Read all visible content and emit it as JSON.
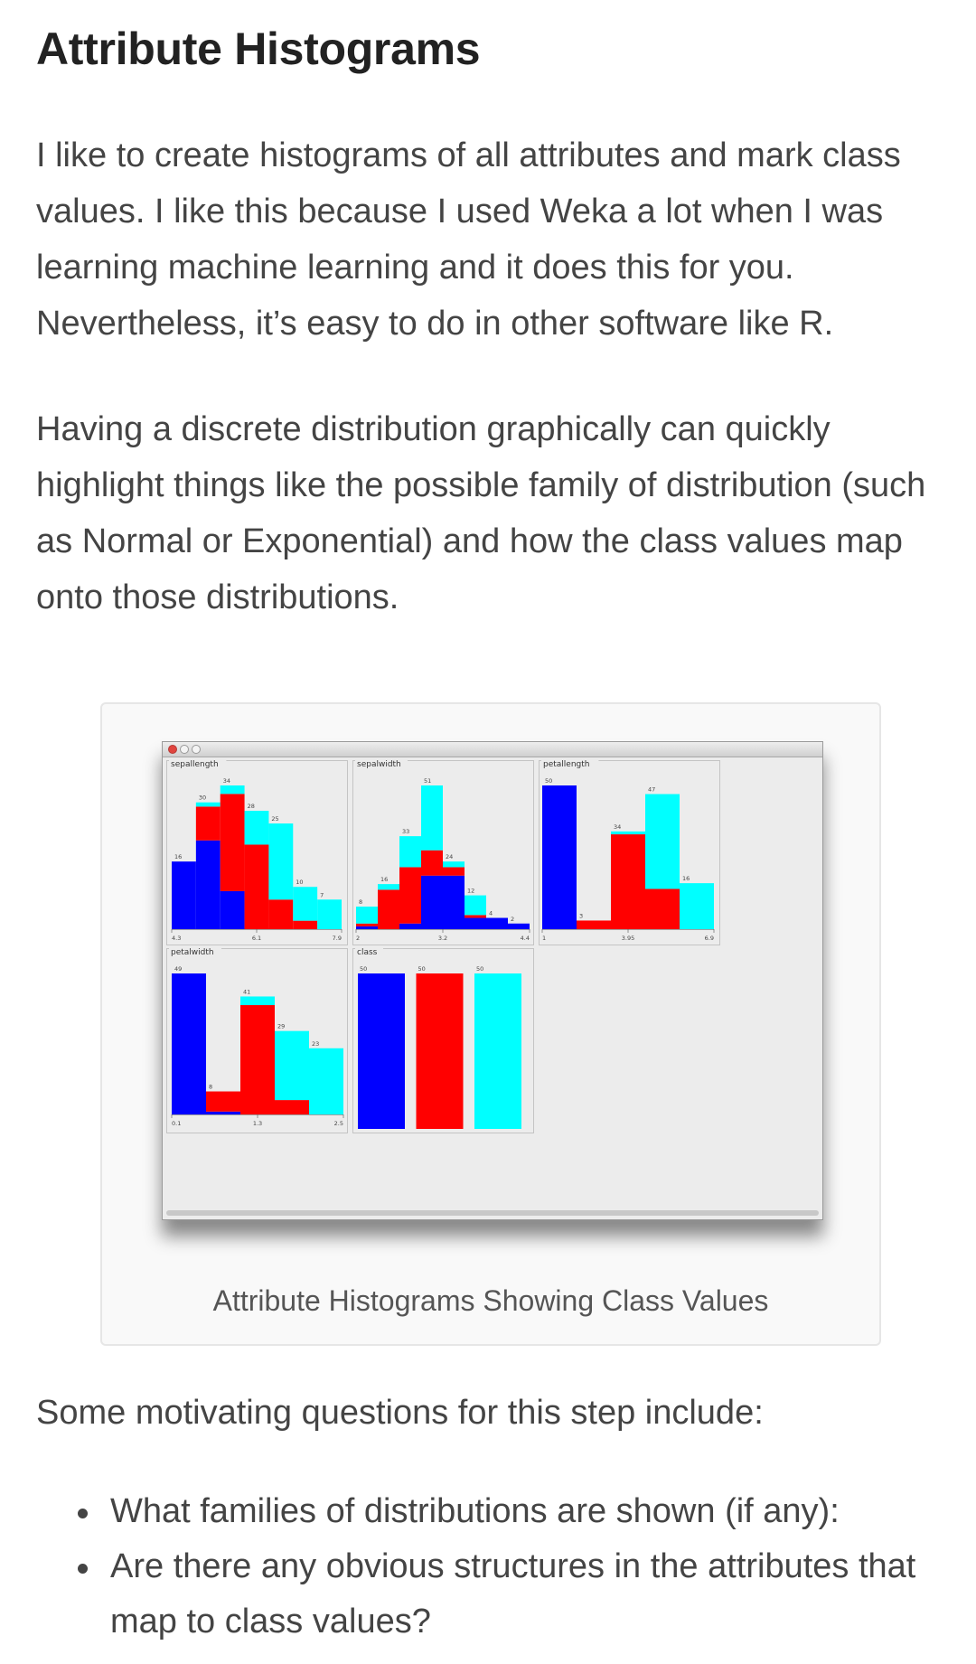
{
  "heading": "Attribute Histograms",
  "paragraphs": [
    "I like to create histograms of all attributes and mark class values. I like this because I used Weka a lot when I was learning machine learning and it does this for you. Nevertheless, it’s easy to do in other software like R.",
    "Having a discrete distribution graphically can quickly highlight things like the possible family of distribution (such as Normal or Exponential) and how the class values map onto those distributions."
  ],
  "figure": {
    "caption": "Attribute Histograms Showing Class Values"
  },
  "lead": "Some motivating questions for this step include:",
  "questions": [
    "What families of distributions are shown (if any):",
    "Are there any obvious structures in the attributes that map to class values?"
  ],
  "colors": {
    "class1": "#0000ff",
    "class2": "#ff0000",
    "class3": "#00ffff",
    "panel_bg": "#ececec",
    "panel_border": "#c4c4c4"
  },
  "chart_data": [
    {
      "type": "bar",
      "title": "sepallength",
      "stacked": true,
      "x_ticks": [
        "4.3",
        "6.1",
        "7.9"
      ],
      "totals": [
        16,
        30,
        34,
        28,
        25,
        10,
        7
      ],
      "series": [
        {
          "values": [
            16,
            21,
            9,
            0,
            0,
            0,
            0
          ]
        },
        {
          "values": [
            0,
            8,
            23,
            20,
            7,
            2,
            0
          ]
        },
        {
          "values": [
            0,
            1,
            2,
            8,
            18,
            8,
            7
          ]
        }
      ]
    },
    {
      "type": "bar",
      "title": "sepalwidth",
      "stacked": true,
      "x_ticks": [
        "2",
        "3.2",
        "4.4"
      ],
      "totals": [
        8,
        16,
        33,
        51,
        24,
        12,
        4,
        2
      ],
      "series": [
        {
          "values": [
            1,
            0,
            2,
            19,
            19,
            4,
            4,
            2
          ]
        },
        {
          "values": [
            1,
            14,
            20,
            9,
            3,
            1,
            0,
            0
          ]
        },
        {
          "values": [
            6,
            2,
            11,
            23,
            2,
            7,
            0,
            0
          ]
        }
      ]
    },
    {
      "type": "bar",
      "title": "petallength",
      "stacked": true,
      "x_ticks": [
        "1",
        "3.95",
        "6.9"
      ],
      "totals": [
        50,
        3,
        34,
        47,
        16
      ],
      "series": [
        {
          "values": [
            50,
            0,
            0,
            0,
            0
          ]
        },
        {
          "values": [
            0,
            3,
            33,
            14,
            0
          ]
        },
        {
          "values": [
            0,
            0,
            1,
            33,
            16
          ]
        }
      ]
    },
    {
      "type": "bar",
      "title": "petalwidth",
      "stacked": true,
      "x_ticks": [
        "0.1",
        "1.3",
        "2.5"
      ],
      "totals": [
        49,
        8,
        41,
        29,
        23
      ],
      "series": [
        {
          "values": [
            49,
            1,
            0,
            0,
            0
          ]
        },
        {
          "values": [
            0,
            7,
            38,
            5,
            0
          ]
        },
        {
          "values": [
            0,
            0,
            3,
            24,
            23
          ]
        }
      ]
    },
    {
      "type": "bar",
      "title": "class",
      "stacked": true,
      "x_ticks": [],
      "totals": [
        50,
        50,
        50
      ],
      "series": [
        {
          "values": [
            50,
            0,
            0
          ]
        },
        {
          "values": [
            0,
            50,
            0
          ]
        },
        {
          "values": [
            0,
            0,
            50
          ]
        }
      ]
    }
  ]
}
